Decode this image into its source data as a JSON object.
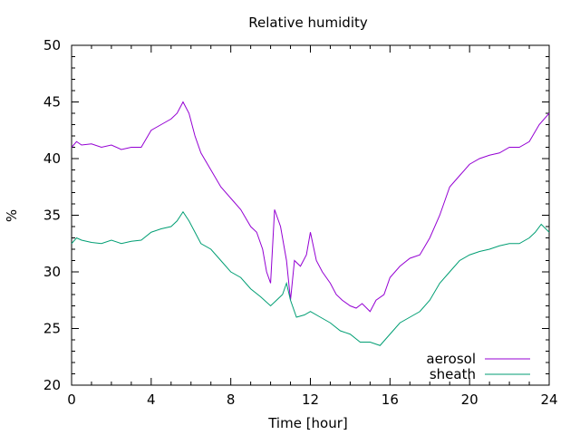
{
  "chart_data": {
    "type": "line",
    "title": "Relative humidity",
    "xlabel": "Time [hour]",
    "ylabel": "%",
    "xlim": [
      0,
      24
    ],
    "ylim": [
      20,
      50
    ],
    "x_ticks": [
      0,
      4,
      8,
      12,
      16,
      20,
      24
    ],
    "y_ticks": [
      20,
      25,
      30,
      35,
      40,
      45,
      50
    ],
    "grid": false,
    "legend_position": "bottom-right",
    "series": [
      {
        "name": "aerosol",
        "color": "#9400d3",
        "x": [
          0,
          0.25,
          0.5,
          1,
          1.5,
          2,
          2.5,
          3,
          3.5,
          4,
          4.5,
          5,
          5.3,
          5.6,
          5.9,
          6.2,
          6.5,
          7,
          7.5,
          8,
          8.5,
          9,
          9.3,
          9.6,
          9.8,
          10,
          10.2,
          10.5,
          10.8,
          11,
          11.2,
          11.5,
          11.8,
          12,
          12.3,
          12.6,
          13,
          13.3,
          13.6,
          14,
          14.3,
          14.6,
          15,
          15.3,
          15.7,
          16,
          16.5,
          17,
          17.5,
          18,
          18.5,
          18.8,
          19,
          19.5,
          20,
          20.5,
          21,
          21.5,
          22,
          22.5,
          23,
          23.5,
          24
        ],
        "y": [
          41.0,
          41.5,
          41.2,
          41.3,
          41.0,
          41.2,
          40.8,
          41.0,
          41.0,
          42.5,
          43.0,
          43.5,
          44.0,
          45.0,
          44.0,
          42.0,
          40.5,
          39.0,
          37.5,
          36.5,
          35.5,
          34.0,
          33.5,
          32.0,
          30.0,
          29.0,
          35.5,
          34.0,
          31.0,
          27.5,
          31.0,
          30.5,
          31.5,
          33.5,
          31.0,
          30.0,
          29.0,
          28.0,
          27.5,
          27.0,
          26.8,
          27.2,
          26.5,
          27.5,
          28.0,
          29.5,
          30.5,
          31.2,
          31.5,
          33.0,
          35.0,
          36.5,
          37.5,
          38.5,
          39.5,
          40.0,
          40.3,
          40.5,
          41.0,
          41.0,
          41.5,
          43.0,
          44.0
        ]
      },
      {
        "name": "sheath",
        "color": "#009e73",
        "x": [
          0,
          0.25,
          0.5,
          1,
          1.5,
          2,
          2.5,
          3,
          3.5,
          4,
          4.5,
          5,
          5.3,
          5.6,
          5.9,
          6.2,
          6.5,
          7,
          7.5,
          8,
          8.5,
          9,
          9.5,
          10,
          10.3,
          10.6,
          10.8,
          11,
          11.3,
          11.7,
          12,
          12.5,
          13,
          13.5,
          14,
          14.5,
          15,
          15.5,
          16,
          16.5,
          17,
          17.5,
          18,
          18.5,
          19,
          19.5,
          20,
          20.5,
          21,
          21.5,
          22,
          22.5,
          23,
          23.3,
          23.6,
          24
        ],
        "y": [
          32.5,
          33.0,
          32.8,
          32.6,
          32.5,
          32.8,
          32.5,
          32.7,
          32.8,
          33.5,
          33.8,
          34.0,
          34.5,
          35.3,
          34.5,
          33.5,
          32.5,
          32.0,
          31.0,
          30.0,
          29.5,
          28.5,
          27.8,
          27.0,
          27.5,
          28.0,
          29.0,
          27.5,
          26.0,
          26.2,
          26.5,
          26.0,
          25.5,
          24.8,
          24.5,
          23.8,
          23.8,
          23.5,
          24.5,
          25.5,
          26.0,
          26.5,
          27.5,
          29.0,
          30.0,
          31.0,
          31.5,
          31.8,
          32.0,
          32.3,
          32.5,
          32.5,
          33.0,
          33.5,
          34.2,
          33.5
        ]
      }
    ]
  }
}
